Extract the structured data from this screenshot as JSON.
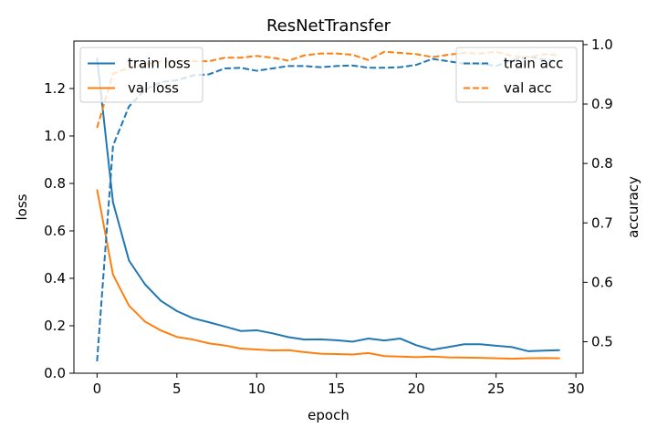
{
  "chart_data": {
    "type": "line",
    "title": "ResNetTransfer",
    "xlabel": "epoch",
    "ylabel_left": "loss",
    "ylabel_right": "accuracy",
    "xlim": [
      -1.45,
      30.45
    ],
    "ylim_left": [
      0,
      1.4
    ],
    "ylim_right": [
      0.447,
      1.006
    ],
    "x_ticks": [
      0,
      5,
      10,
      15,
      20,
      25,
      30
    ],
    "y_ticks_left": [
      0.0,
      0.2,
      0.4,
      0.6,
      0.8,
      1.0,
      1.2
    ],
    "y_ticks_right": [
      0.5,
      0.6,
      0.7,
      0.8,
      0.9,
      1.0
    ],
    "x": [
      0,
      1,
      2,
      3,
      4,
      5,
      6,
      7,
      8,
      9,
      10,
      11,
      12,
      13,
      14,
      15,
      16,
      17,
      18,
      19,
      20,
      21,
      22,
      23,
      24,
      25,
      26,
      27,
      28,
      29
    ],
    "series": [
      {
        "name": "train loss",
        "axis": "left",
        "style": "solid",
        "color": "#1f77b4",
        "values": [
          1.33,
          0.72,
          0.475,
          0.375,
          0.305,
          0.262,
          0.232,
          0.215,
          0.197,
          0.178,
          0.181,
          0.168,
          0.152,
          0.142,
          0.143,
          0.139,
          0.133,
          0.146,
          0.138,
          0.146,
          0.118,
          0.099,
          0.11,
          0.122,
          0.122,
          0.116,
          0.11,
          0.093,
          0.095,
          0.097
        ]
      },
      {
        "name": "val loss",
        "axis": "left",
        "style": "solid",
        "color": "#ff7f0e",
        "values": [
          0.775,
          0.415,
          0.285,
          0.218,
          0.18,
          0.153,
          0.142,
          0.126,
          0.117,
          0.104,
          0.1,
          0.096,
          0.097,
          0.089,
          0.082,
          0.081,
          0.079,
          0.085,
          0.072,
          0.07,
          0.068,
          0.07,
          0.067,
          0.066,
          0.065,
          0.063,
          0.061,
          0.063,
          0.064,
          0.063
        ]
      },
      {
        "name": "train acc",
        "axis": "right",
        "style": "dashed",
        "color": "#1f77b4",
        "values": [
          0.467,
          0.83,
          0.896,
          0.924,
          0.937,
          0.94,
          0.948,
          0.95,
          0.96,
          0.961,
          0.956,
          0.96,
          0.964,
          0.964,
          0.962,
          0.964,
          0.965,
          0.961,
          0.961,
          0.962,
          0.966,
          0.976,
          0.972,
          0.968,
          0.968,
          0.964,
          0.974,
          0.98,
          0.975,
          0.972
        ]
      },
      {
        "name": "val acc",
        "axis": "right",
        "style": "dashed",
        "color": "#ff7f0e",
        "values": [
          0.86,
          0.951,
          0.961,
          0.966,
          0.972,
          0.971,
          0.972,
          0.972,
          0.978,
          0.978,
          0.981,
          0.978,
          0.973,
          0.982,
          0.985,
          0.985,
          0.983,
          0.974,
          0.988,
          0.986,
          0.984,
          0.979,
          0.983,
          0.986,
          0.985,
          0.988,
          0.981,
          0.979,
          0.984,
          0.982
        ]
      }
    ],
    "legend_left_placement": "upper-left",
    "legend_right_placement": "upper-right",
    "grid": false
  }
}
